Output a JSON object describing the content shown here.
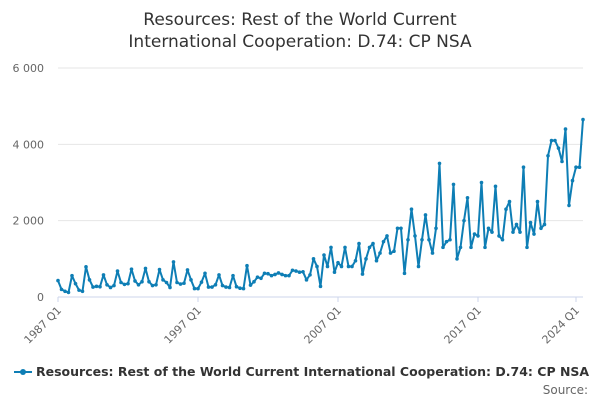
{
  "chart_data": {
    "type": "line",
    "title": "Resources: Rest of the World Current International Cooperation: D.74: CP NSA",
    "xlabel": "",
    "ylabel": "",
    "x_tick_labels": [
      "1987 Q1",
      "1997 Q1",
      "2007 Q1",
      "2017 Q1",
      "2024 Q1"
    ],
    "y_tick_labels": [
      "0",
      "2 000",
      "4 000",
      "6 000"
    ],
    "ylim": [
      0,
      6000
    ],
    "grid": true,
    "legend_position": "bottom-left",
    "x_start": "1987 Q1",
    "series": [
      {
        "name": "Resources: Rest of the World Current International Cooperation: D.74: CP NSA",
        "color": "#0e7eb5",
        "values": [
          430,
          200,
          150,
          120,
          560,
          350,
          180,
          150,
          790,
          450,
          260,
          280,
          270,
          580,
          320,
          250,
          300,
          680,
          380,
          330,
          350,
          730,
          420,
          320,
          400,
          750,
          400,
          300,
          320,
          720,
          450,
          380,
          250,
          920,
          380,
          340,
          360,
          710,
          450,
          220,
          220,
          390,
          620,
          260,
          260,
          320,
          580,
          300,
          260,
          250,
          560,
          270,
          230,
          220,
          820,
          310,
          400,
          520,
          490,
          620,
          610,
          560,
          590,
          630,
          590,
          560,
          560,
          700,
          680,
          650,
          660,
          450,
          580,
          1000,
          800,
          280,
          1100,
          800,
          1300,
          650,
          900,
          800,
          1300,
          800,
          800,
          950,
          1400,
          600,
          1000,
          1300,
          1400,
          950,
          1150,
          1450,
          1600,
          1150,
          1200,
          1800,
          1800,
          620,
          1500,
          2300,
          1600,
          800,
          1500,
          2150,
          1500,
          1150,
          1800,
          3500,
          1300,
          1450,
          1500,
          2950,
          1000,
          1300,
          2000,
          2600,
          1300,
          1650,
          1600,
          3000,
          1300,
          1800,
          1700,
          2900,
          1600,
          1500,
          2300,
          2500,
          1700,
          1900,
          1700,
          3400,
          1300,
          1950,
          1650,
          2500,
          1800,
          1900,
          3700,
          4100,
          4100,
          3900,
          3550,
          4400,
          2400,
          3050,
          3400,
          3400,
          4650
        ]
      }
    ]
  },
  "legend": {
    "label": "Resources: Rest of the World Current International Cooperation: D.74: CP NSA"
  },
  "source": {
    "label": "Source:"
  }
}
